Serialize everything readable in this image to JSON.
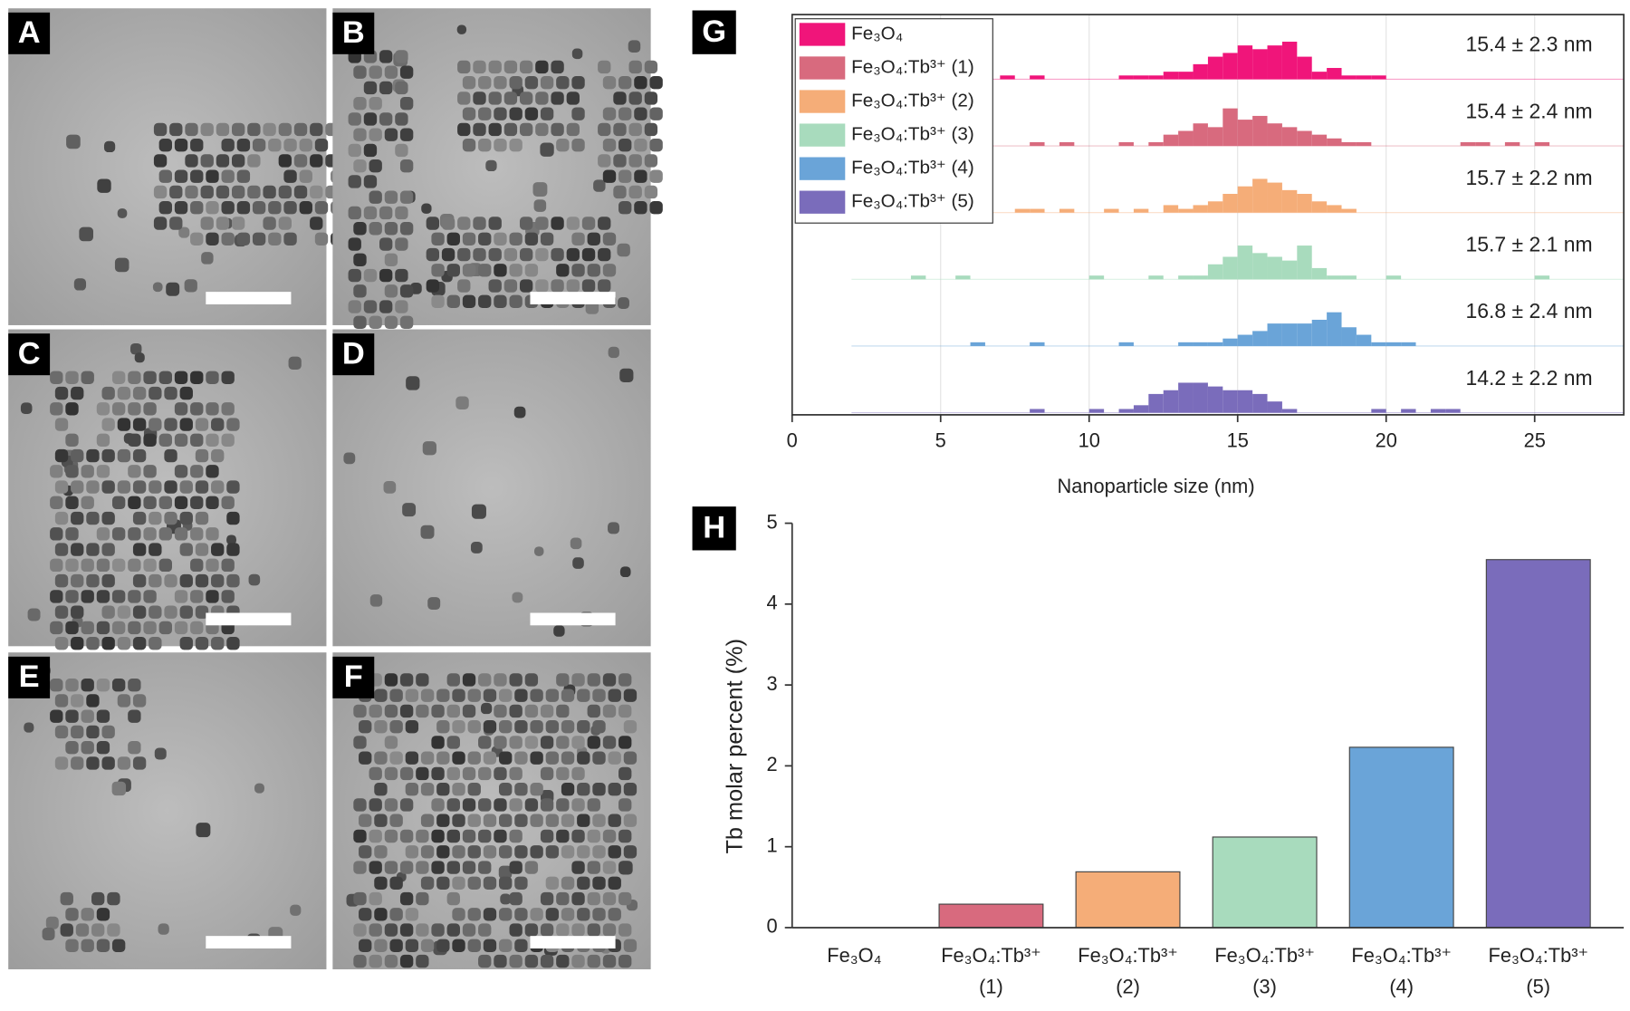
{
  "tem_panels": [
    "A",
    "B",
    "C",
    "D",
    "E",
    "F"
  ],
  "chart_data": [
    {
      "type": "histogram",
      "panel_label": "G",
      "x_label": "Nanoparticle size (nm)",
      "xlim": [
        0,
        28
      ],
      "xticks": [
        0,
        5,
        10,
        15,
        20,
        25
      ],
      "grid": true,
      "legend": "top-left",
      "bins": [
        4,
        4.5,
        5,
        5.5,
        6,
        6.5,
        7,
        7.5,
        8,
        8.5,
        9,
        9.5,
        10,
        10.5,
        11,
        11.5,
        12,
        12.5,
        13,
        13.5,
        14,
        14.5,
        15,
        15.5,
        16,
        16.5,
        17,
        17.5,
        18,
        18.5,
        19,
        19.5,
        20,
        20.5,
        21,
        21.5,
        22,
        22.5,
        23,
        23.5,
        24,
        24.5,
        25,
        25.5,
        26
      ],
      "series": [
        {
          "name": "Fe₃O₄",
          "color": "#f0157a",
          "annotation": "15.4 ± 2.3 nm",
          "values": [
            0,
            0,
            0,
            0,
            0,
            0,
            1,
            0,
            1,
            0,
            0,
            0,
            0,
            0,
            1,
            1,
            1,
            2,
            2,
            4,
            6,
            7,
            9,
            8,
            9,
            10,
            6,
            2,
            3,
            1,
            1,
            1,
            0,
            0,
            0,
            0,
            0,
            0,
            0,
            0,
            0,
            0,
            0,
            0
          ]
        },
        {
          "name": "Fe₃O₄:Tb³⁺ (1)",
          "color": "#d86a7e",
          "annotation": "15.4 ± 2.4 nm",
          "values": [
            0,
            0,
            0,
            0,
            0,
            0,
            0,
            0,
            1,
            0,
            1,
            0,
            0,
            0,
            1,
            0,
            1,
            3,
            4,
            6,
            5,
            10,
            7,
            8,
            6,
            5,
            4,
            3,
            2,
            1,
            1,
            0,
            0,
            0,
            0,
            0,
            0,
            1,
            1,
            0,
            1,
            0,
            1,
            0
          ]
        },
        {
          "name": "Fe₃O₄:Tb³⁺ (2)",
          "color": "#f5ad78",
          "annotation": "15.7 ± 2.2 nm",
          "values": [
            0,
            0,
            0,
            0,
            0,
            0,
            0,
            1,
            1,
            0,
            1,
            0,
            0,
            1,
            0,
            1,
            0,
            2,
            1,
            2,
            3,
            5,
            7,
            9,
            8,
            6,
            5,
            3,
            2,
            1,
            0,
            0,
            0,
            0,
            0,
            0,
            0,
            0,
            0,
            0,
            0,
            0,
            0,
            0
          ]
        },
        {
          "name": "Fe₃O₄:Tb³⁺ (3)",
          "color": "#a8dbbd",
          "annotation": "15.7 ± 2.1 nm",
          "values": [
            1,
            0,
            0,
            1,
            0,
            0,
            0,
            0,
            0,
            0,
            0,
            0,
            1,
            0,
            0,
            0,
            1,
            0,
            1,
            1,
            4,
            6,
            9,
            7,
            6,
            5,
            9,
            3,
            1,
            1,
            0,
            0,
            1,
            0,
            0,
            0,
            0,
            0,
            0,
            0,
            0,
            0,
            1,
            0
          ]
        },
        {
          "name": "Fe₃O₄:Tb³⁺ (4)",
          "color": "#6aa4d8",
          "annotation": "16.8 ± 2.4 nm",
          "values": [
            0,
            0,
            0,
            0,
            1,
            0,
            0,
            0,
            1,
            0,
            0,
            0,
            0,
            0,
            1,
            0,
            0,
            0,
            1,
            1,
            1,
            2,
            3,
            4,
            6,
            6,
            6,
            7,
            9,
            5,
            3,
            1,
            1,
            1,
            0,
            0,
            0,
            0,
            0,
            0,
            0,
            0,
            0,
            0
          ]
        },
        {
          "name": "Fe₃O₄:Tb³⁺ (5)",
          "color": "#7a6cbb",
          "annotation": "14.2 ± 2.2 nm",
          "values": [
            0,
            0,
            0,
            0,
            0,
            0,
            0,
            0,
            1,
            0,
            0,
            0,
            1,
            0,
            1,
            2,
            5,
            6,
            8,
            8,
            7,
            6,
            6,
            5,
            3,
            1,
            0,
            0,
            0,
            0,
            0,
            1,
            0,
            1,
            0,
            1,
            1,
            0,
            0,
            0,
            0,
            0,
            0,
            0
          ]
        }
      ]
    },
    {
      "type": "bar",
      "panel_label": "H",
      "y_label": "Tb molar percent (%)",
      "categories": [
        [
          "Fe₃O₄"
        ],
        [
          "Fe₃O₄:Tb³⁺",
          "(1)"
        ],
        [
          "Fe₃O₄:Tb³⁺",
          "(2)"
        ],
        [
          "Fe₃O₄:Tb³⁺",
          "(3)"
        ],
        [
          "Fe₃O₄:Tb³⁺",
          "(4)"
        ],
        [
          "Fe₃O₄:Tb³⁺",
          "(5)"
        ]
      ],
      "values": [
        0,
        0.29,
        0.69,
        1.12,
        2.23,
        4.55
      ],
      "colors": [
        "#f0157a",
        "#d86a7e",
        "#f5ad78",
        "#a8dbbd",
        "#6aa4d8",
        "#7a6cbb"
      ],
      "ylim": [
        0,
        5
      ],
      "yticks": [
        0,
        1,
        2,
        3,
        4,
        5
      ]
    }
  ]
}
